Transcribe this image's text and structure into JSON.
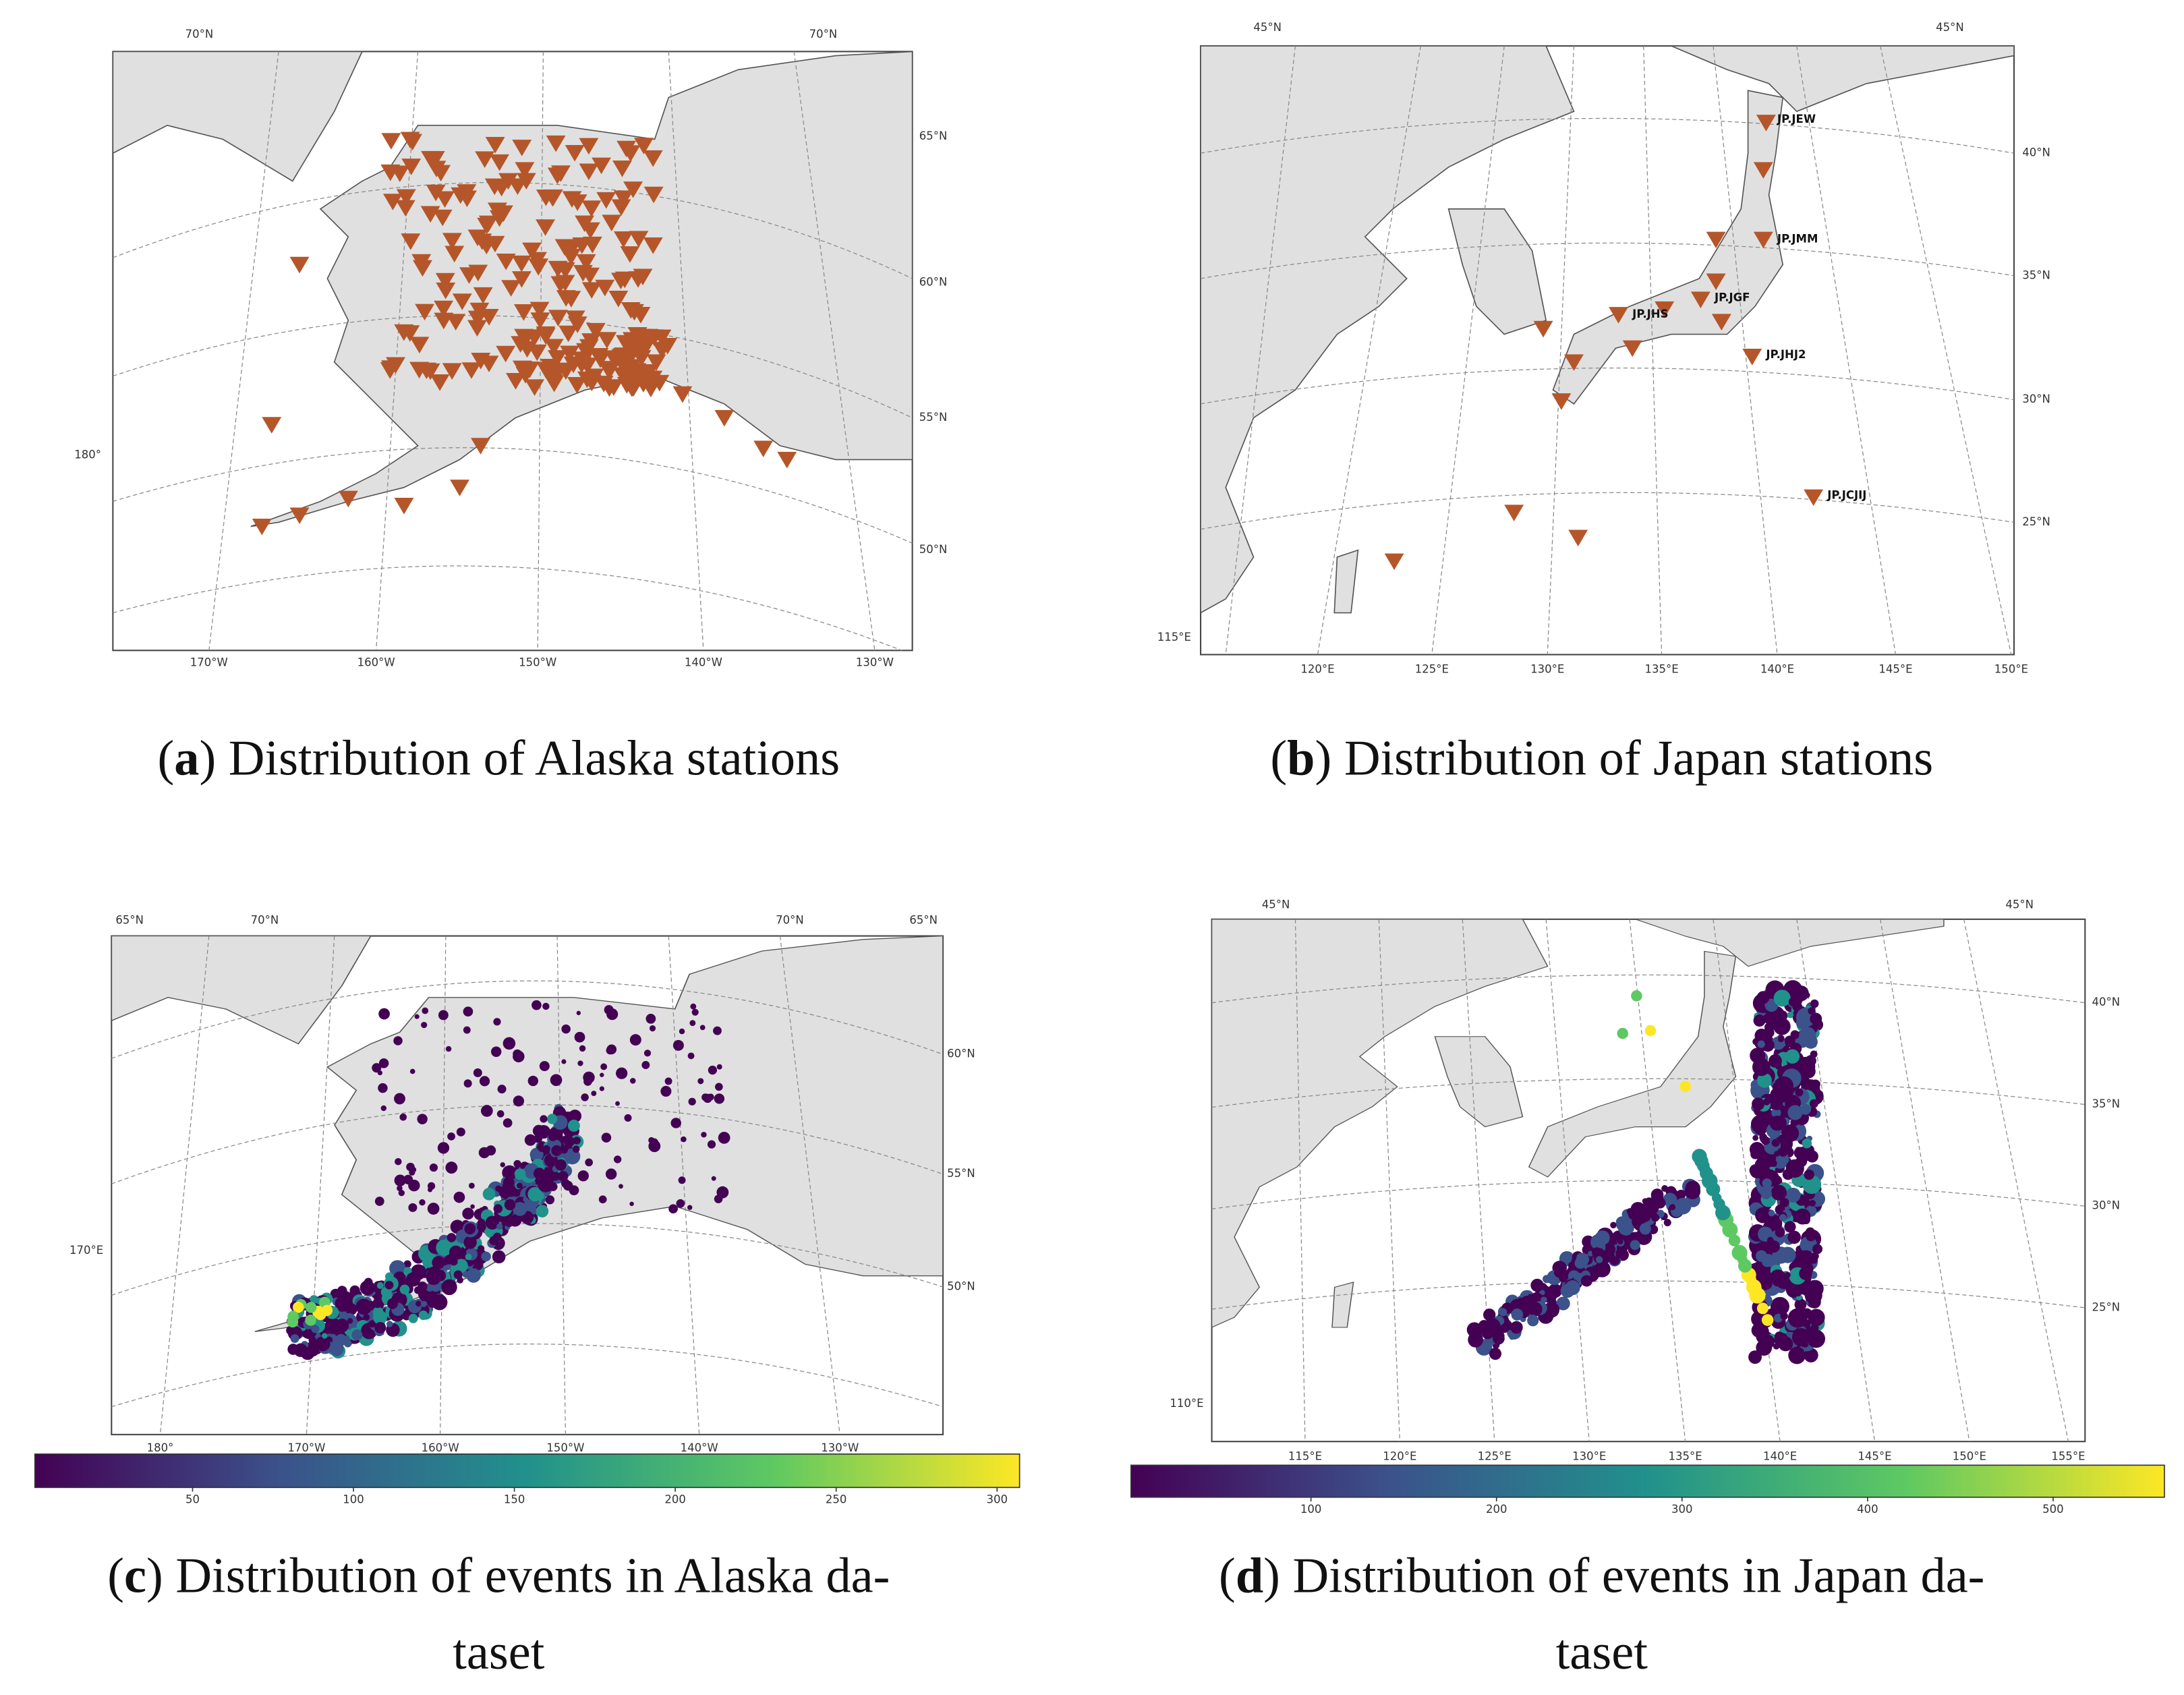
{
  "panels": [
    {
      "map_labels": [
        "70°N",
        "70°N",
        "65°N",
        "60°N",
        "55°N",
        "50°N",
        "180°",
        "170°W",
        "160°W",
        "150°W",
        "140°W",
        "130°W"
      ],
      "caption": [
        [
          "(",
          "a",
          ") Distribution of Alaska stations"
        ]
      ]
    },
    {
      "map_labels": [
        "45°N",
        "45°N",
        "40°N",
        "35°N",
        "30°N",
        "25°N",
        "115°E",
        "120°E",
        "125°E",
        "130°E",
        "135°E",
        "140°E",
        "145°E",
        "150°E"
      ],
      "station_labels": [
        "JP.JEW",
        "JP.JMM",
        "JP.JGF",
        "JP.JHS",
        "JP.JHJ2",
        "JP.JCJIJ"
      ],
      "caption": [
        [
          "(",
          "b",
          ") Distribution of Japan stations"
        ]
      ]
    },
    {
      "map_labels": [
        "65°N",
        "70°N",
        "70°N",
        "65°N",
        "60°N",
        "55°N",
        "50°N",
        "170°E",
        "180°",
        "170°W",
        "160°W",
        "150°W",
        "140°W",
        "130°W"
      ],
      "colorbar": {
        "clim": [
          1,
          307
        ],
        "ticks": [
          50,
          100,
          150,
          200,
          250,
          300
        ]
      },
      "caption": [
        [
          "(",
          "c",
          ") Distribution of events in Alaska da-"
        ],
        [
          "taset"
        ]
      ]
    },
    {
      "map_labels": [
        "45°N",
        "45°N",
        "40°N",
        "35°N",
        "30°N",
        "25°N",
        "110°E",
        "115°E",
        "120°E",
        "125°E",
        "130°E",
        "135°E",
        "140°E",
        "145°E",
        "150°E",
        "155°E"
      ],
      "colorbar": {
        "clim": [
          3,
          560
        ],
        "ticks": [
          100,
          200,
          300,
          400,
          500
        ]
      },
      "caption": [
        [
          "(",
          "d",
          ") Distribution of events in Japan da-"
        ],
        [
          "taset"
        ]
      ]
    }
  ]
}
